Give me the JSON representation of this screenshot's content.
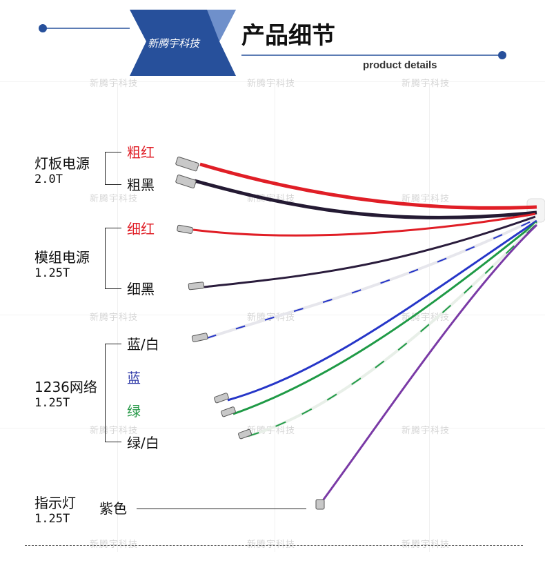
{
  "header": {
    "brand": "新腾宇科技",
    "title": "产品细节",
    "subtitle": "product details",
    "banner_color": "#27509b"
  },
  "watermark": "新腾宇科技",
  "groups": [
    {
      "name": "灯板电源",
      "spec": "2.0T",
      "wires": [
        "粗红",
        "粗黑"
      ]
    },
    {
      "name": "模组电源",
      "spec": "1.25T",
      "wires": [
        "细红",
        "细黑"
      ]
    },
    {
      "name": "1236网络",
      "spec": "1.25T",
      "wires": [
        "蓝/白",
        "蓝",
        "绿",
        "绿/白"
      ]
    },
    {
      "name": "指示灯",
      "spec": "1.25T",
      "wires": [
        "紫色"
      ]
    }
  ],
  "colors": {
    "red": "#e01e26",
    "black": "#1b1526",
    "blue": "#2636c8",
    "green": "#1f9a46",
    "purple": "#7a3aa6",
    "label_red": "#e01e26",
    "label_blue": "#2f3aa8",
    "label_green": "#2a9a4a"
  }
}
